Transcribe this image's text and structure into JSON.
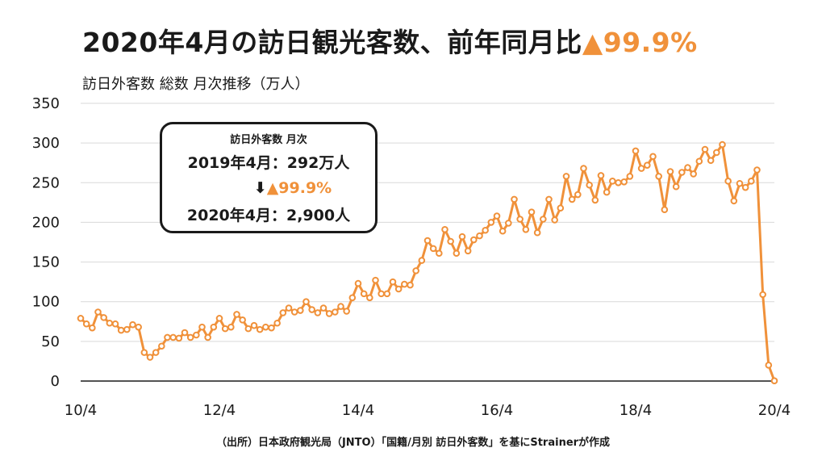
{
  "title": {
    "main": "2020年4月の訪日観光客数、前年同月比",
    "change": "▲99.9%"
  },
  "subtitle": "訪日外客数 総数 月次推移（万人）",
  "callout": {
    "header": "訪日外客数 月次",
    "line1": "2019年4月：292万人",
    "arrow": "⬇",
    "change": "▲99.9%",
    "line2": "2020年4月：2,900人"
  },
  "source": "（出所）日本政府観光局（JNTO）「国籍/月別 訪日外客数」を基にStrainerが作成",
  "chart_data": {
    "type": "line",
    "ylim": [
      0,
      350
    ],
    "yticks": [
      "0",
      "50",
      "100",
      "150",
      "200",
      "250",
      "300",
      "350"
    ],
    "xticks": [
      "10/4",
      "12/4",
      "14/4",
      "16/4",
      "18/4",
      "20/4"
    ],
    "series_color": "#f0913a",
    "grid": "horizontal",
    "series": [
      {
        "values": [
          79,
          72,
          67,
          87,
          80,
          73,
          72,
          64,
          65,
          71,
          68,
          36,
          30,
          36,
          44,
          55,
          55,
          54,
          61,
          55,
          58,
          68,
          55,
          68,
          79,
          66,
          68,
          84,
          77,
          66,
          70,
          65,
          68,
          67,
          73,
          86,
          92,
          87,
          89,
          100,
          90,
          86,
          92,
          85,
          87,
          94,
          88,
          105,
          123,
          110,
          105,
          127,
          110,
          110,
          125,
          116,
          122,
          121,
          139,
          152,
          177,
          167,
          161,
          191,
          176,
          161,
          182,
          164,
          178,
          183,
          190,
          200,
          208,
          189,
          199,
          229,
          204,
          191,
          213,
          187,
          204,
          229,
          203,
          218,
          258,
          229,
          235,
          268,
          247,
          228,
          259,
          238,
          252,
          250,
          251,
          258,
          290,
          268,
          272,
          283,
          258,
          216,
          264,
          245,
          263,
          269,
          261,
          277,
          292,
          278,
          288,
          298,
          252,
          227,
          249,
          244,
          252,
          266,
          109,
          20,
          0.29
        ]
      }
    ]
  }
}
